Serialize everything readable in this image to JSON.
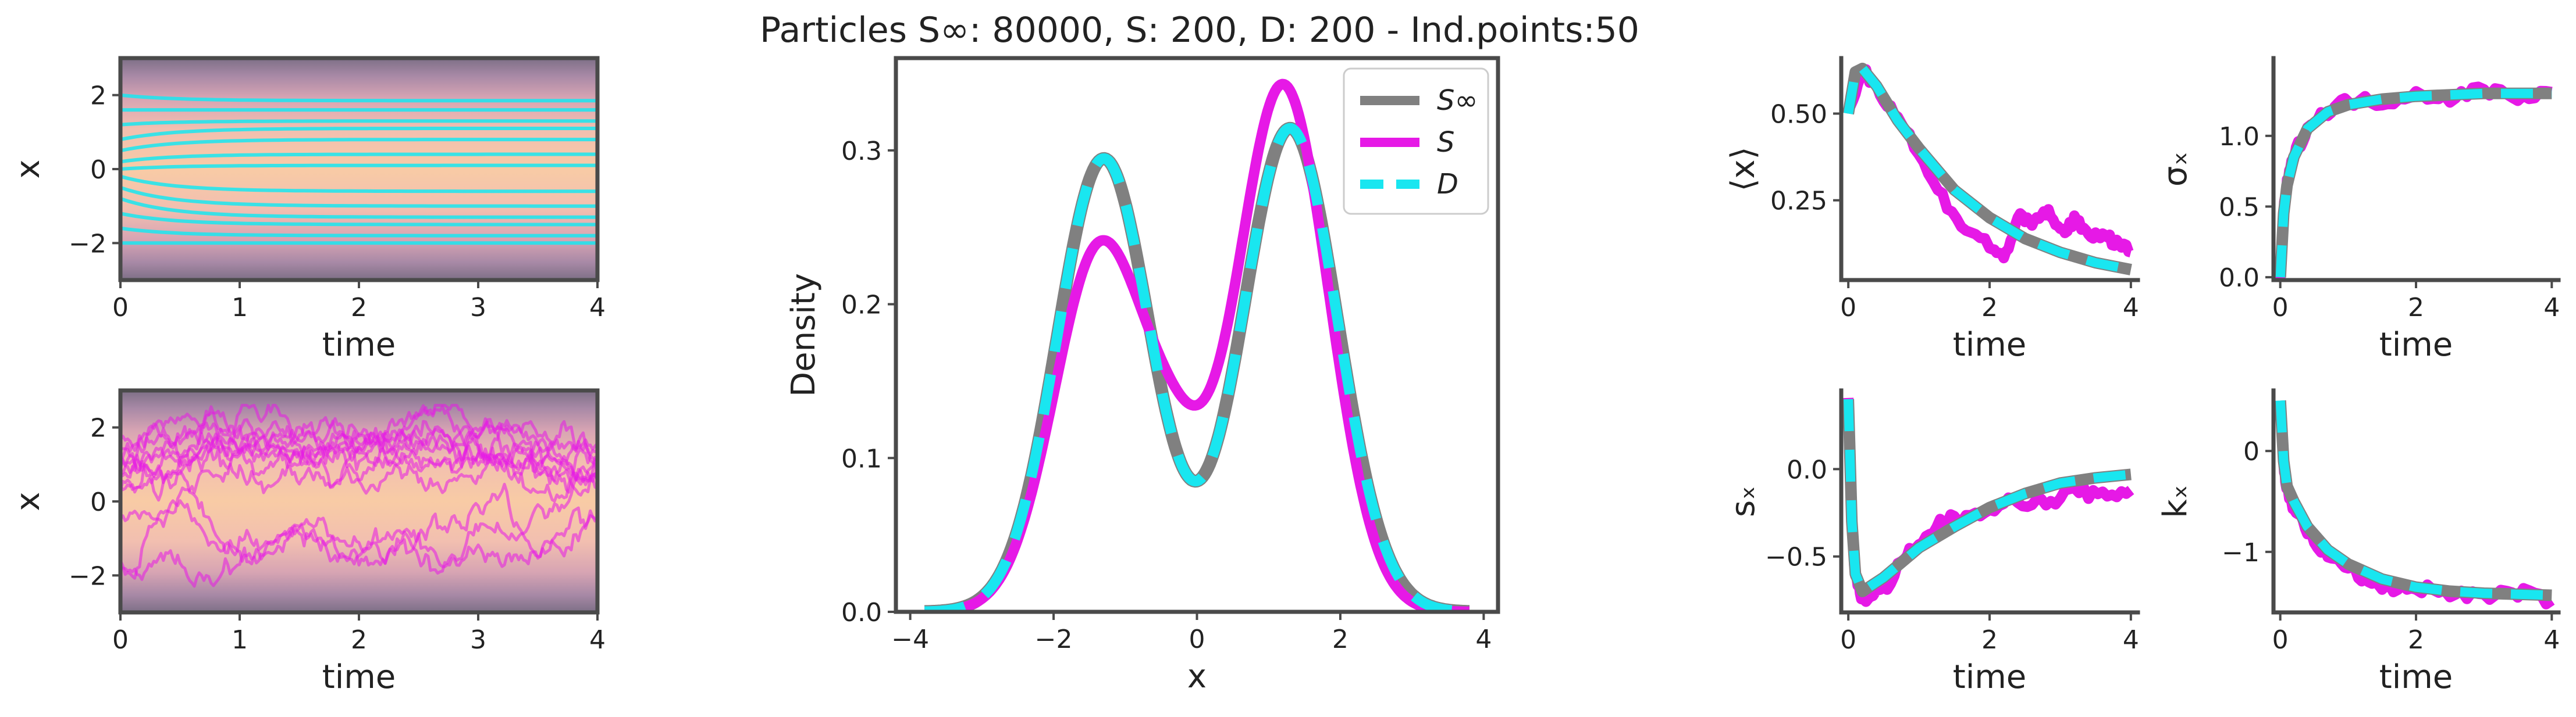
{
  "figure": {
    "title": "Particles S∞: 80000, S: 200, D: 200 - Ind.points:50"
  },
  "colors": {
    "S_inf": "#808080",
    "S": "#e619e6",
    "D": "#19e6f0",
    "density_bg_top": "#8a7a8e",
    "density_bg_mid": "#f6c7a6"
  },
  "chart_data": [
    {
      "id": "paths_D",
      "type": "line",
      "xlabel": "time",
      "ylabel": "x",
      "xlim": [
        0,
        4
      ],
      "ylim": [
        -3,
        3
      ],
      "xticks": [
        0,
        1,
        2,
        3,
        4
      ],
      "yticks": [
        -2,
        0,
        2
      ],
      "background": "density heatmap (orange center, purple edges)",
      "series": [
        {
          "x0": 0.0,
          "y0": 2.0,
          "yend": 1.85
        },
        {
          "x0": 0.0,
          "y0": 1.6,
          "yend": 1.6
        },
        {
          "x0": 0.0,
          "y0": 1.2,
          "yend": 1.3
        },
        {
          "x0": 0.0,
          "y0": 0.8,
          "yend": 1.1
        },
        {
          "x0": 0.0,
          "y0": 0.5,
          "yend": 0.8
        },
        {
          "x0": 0.0,
          "y0": 0.2,
          "yend": 0.4
        },
        {
          "x0": 0.0,
          "y0": 0.0,
          "yend": 0.1
        },
        {
          "x0": 0.0,
          "y0": -0.2,
          "yend": -0.6
        },
        {
          "x0": 0.0,
          "y0": -0.5,
          "yend": -1.0
        },
        {
          "x0": 0.0,
          "y0": -0.8,
          "yend": -1.3
        },
        {
          "x0": 0.0,
          "y0": -1.2,
          "yend": -1.5
        },
        {
          "x0": 0.0,
          "y0": -1.6,
          "yend": -1.8
        },
        {
          "x0": 0.0,
          "y0": -2.0,
          "yend": -2.0
        }
      ]
    },
    {
      "id": "paths_S",
      "type": "line",
      "xlabel": "time",
      "ylabel": "x",
      "xlim": [
        0,
        4
      ],
      "ylim": [
        -3,
        3
      ],
      "xticks": [
        0,
        1,
        2,
        3,
        4
      ],
      "yticks": [
        -2,
        0,
        2
      ],
      "background": "density heatmap (orange center, purple edges)",
      "series_count": 12
    },
    {
      "id": "density",
      "type": "line",
      "xlabel": "x",
      "ylabel": "Density",
      "xlim": [
        -4.2,
        4.2
      ],
      "ylim": [
        0,
        0.36
      ],
      "xticks": [
        -4,
        -2,
        0,
        2,
        4
      ],
      "yticks": [
        0.0,
        0.1,
        0.2,
        0.3
      ],
      "legend_position": "top-right",
      "series": [
        {
          "name": "S∞",
          "components": [
            [
              0.48,
              -1.3,
              0.65
            ],
            [
              0.52,
              1.3,
              0.66
            ]
          ]
        },
        {
          "name": "S",
          "components": [
            [
              0.38,
              -1.35,
              0.64
            ],
            [
              0.55,
              1.2,
              0.64
            ],
            [
              0.07,
              -0.3,
              0.45
            ]
          ]
        },
        {
          "name": "D",
          "components": [
            [
              0.48,
              -1.3,
              0.65
            ],
            [
              0.52,
              1.3,
              0.66
            ]
          ]
        }
      ]
    },
    {
      "id": "mean",
      "type": "line",
      "xlabel": "time",
      "ylabel": "⟨x⟩",
      "xlim": [
        -0.1,
        4.1
      ],
      "ylim": [
        0.02,
        0.66
      ],
      "xticks": [
        0,
        2,
        4
      ],
      "yticks": [
        0.25,
        0.5
      ],
      "series": [
        {
          "name": "S∞",
          "x": [
            0,
            0.1,
            0.2,
            0.4,
            0.7,
            1.0,
            1.5,
            2.0,
            2.5,
            3.0,
            3.5,
            4.0
          ],
          "y": [
            0.5,
            0.62,
            0.63,
            0.58,
            0.48,
            0.4,
            0.28,
            0.2,
            0.14,
            0.1,
            0.07,
            0.05
          ]
        },
        {
          "name": "S",
          "x": [
            0,
            0.2,
            0.5,
            0.8,
            1.2,
            1.6,
            2.0,
            2.2,
            2.4,
            2.6,
            2.8,
            3.0,
            3.2,
            3.4,
            3.6,
            3.8,
            4.0
          ],
          "y": [
            0.5,
            0.63,
            0.55,
            0.46,
            0.3,
            0.18,
            0.12,
            0.08,
            0.2,
            0.18,
            0.22,
            0.16,
            0.19,
            0.16,
            0.14,
            0.13,
            0.1
          ]
        },
        {
          "name": "D",
          "x": [
            0,
            0.1,
            0.2,
            0.4,
            0.7,
            1.0,
            1.5,
            2.0,
            2.5,
            3.0,
            3.5,
            4.0
          ],
          "y": [
            0.5,
            0.62,
            0.63,
            0.58,
            0.48,
            0.4,
            0.28,
            0.2,
            0.14,
            0.1,
            0.07,
            0.05
          ]
        }
      ]
    },
    {
      "id": "std",
      "type": "line",
      "xlabel": "time",
      "ylabel": "σₓ",
      "xlim": [
        -0.1,
        4.1
      ],
      "ylim": [
        -0.02,
        1.55
      ],
      "xticks": [
        0,
        2,
        4
      ],
      "yticks": [
        0.0,
        0.5,
        1.0
      ],
      "series": [
        {
          "name": "S∞",
          "x": [
            0,
            0.05,
            0.1,
            0.2,
            0.4,
            0.7,
            1.0,
            1.5,
            2.0,
            3.0,
            4.0
          ],
          "y": [
            0.0,
            0.45,
            0.65,
            0.85,
            1.05,
            1.17,
            1.22,
            1.26,
            1.28,
            1.3,
            1.3
          ]
        },
        {
          "name": "S",
          "x": [
            0,
            0.05,
            0.1,
            0.2,
            0.4,
            0.7,
            1.0,
            1.5,
            2.0,
            2.5,
            3.0,
            3.5,
            4.0
          ],
          "y": [
            0.0,
            0.46,
            0.66,
            0.86,
            1.06,
            1.18,
            1.25,
            1.24,
            1.3,
            1.27,
            1.33,
            1.28,
            1.31
          ]
        },
        {
          "name": "D",
          "x": [
            0,
            0.05,
            0.1,
            0.2,
            0.4,
            0.7,
            1.0,
            1.5,
            2.0,
            3.0,
            4.0
          ],
          "y": [
            0.0,
            0.45,
            0.65,
            0.85,
            1.05,
            1.17,
            1.22,
            1.26,
            1.28,
            1.3,
            1.3
          ]
        }
      ]
    },
    {
      "id": "skew",
      "type": "line",
      "xlabel": "time",
      "ylabel": "sₓ",
      "xlim": [
        -0.1,
        4.1
      ],
      "ylim": [
        -0.82,
        0.45
      ],
      "xticks": [
        0,
        2,
        4
      ],
      "yticks": [
        -0.5,
        0.0
      ],
      "series": [
        {
          "name": "S∞",
          "x": [
            0,
            0.05,
            0.1,
            0.2,
            0.5,
            1.0,
            1.5,
            2.0,
            2.5,
            3.0,
            3.5,
            4.0
          ],
          "y": [
            0.4,
            -0.3,
            -0.6,
            -0.7,
            -0.62,
            -0.45,
            -0.33,
            -0.22,
            -0.14,
            -0.08,
            -0.05,
            -0.03
          ]
        },
        {
          "name": "S",
          "x": [
            0,
            0.05,
            0.1,
            0.2,
            0.5,
            0.8,
            1.0,
            1.3,
            1.6,
            2.0,
            2.4,
            2.8,
            3.2,
            3.6,
            4.0
          ],
          "y": [
            0.4,
            -0.32,
            -0.62,
            -0.74,
            -0.7,
            -0.5,
            -0.45,
            -0.3,
            -0.28,
            -0.22,
            -0.18,
            -0.2,
            -0.12,
            -0.16,
            -0.12
          ]
        },
        {
          "name": "D",
          "x": [
            0,
            0.05,
            0.1,
            0.2,
            0.5,
            1.0,
            1.5,
            2.0,
            2.5,
            3.0,
            3.5,
            4.0
          ],
          "y": [
            0.4,
            -0.3,
            -0.6,
            -0.7,
            -0.62,
            -0.45,
            -0.33,
            -0.22,
            -0.14,
            -0.08,
            -0.05,
            -0.03
          ]
        }
      ]
    },
    {
      "id": "kurtosis",
      "type": "line",
      "xlabel": "time",
      "ylabel": "kₓ",
      "xlim": [
        -0.1,
        4.1
      ],
      "ylim": [
        -1.6,
        0.6
      ],
      "xticks": [
        0,
        2,
        4
      ],
      "yticks": [
        -1,
        0
      ],
      "series": [
        {
          "name": "S∞",
          "x": [
            0,
            0.05,
            0.1,
            0.2,
            0.4,
            0.7,
            1.0,
            1.5,
            2.0,
            2.5,
            3.0,
            3.5,
            4.0
          ],
          "y": [
            0.5,
            -0.1,
            -0.35,
            -0.5,
            -0.75,
            -0.98,
            -1.12,
            -1.27,
            -1.35,
            -1.39,
            -1.41,
            -1.42,
            -1.43
          ]
        },
        {
          "name": "S",
          "x": [
            0,
            0.05,
            0.1,
            0.2,
            0.4,
            0.7,
            1.0,
            1.3,
            1.6,
            2.0,
            2.5,
            3.0,
            3.5,
            4.0
          ],
          "y": [
            0.5,
            -0.15,
            -0.4,
            -0.55,
            -0.8,
            -1.05,
            -1.15,
            -1.3,
            -1.35,
            -1.36,
            -1.4,
            -1.45,
            -1.4,
            -1.48
          ]
        },
        {
          "name": "D",
          "x": [
            0,
            0.05,
            0.1,
            0.2,
            0.4,
            0.7,
            1.0,
            1.5,
            2.0,
            2.5,
            3.0,
            3.5,
            4.0
          ],
          "y": [
            0.5,
            -0.1,
            -0.35,
            -0.5,
            -0.75,
            -0.98,
            -1.12,
            -1.27,
            -1.35,
            -1.39,
            -1.41,
            -1.42,
            -1.43
          ]
        }
      ]
    }
  ]
}
